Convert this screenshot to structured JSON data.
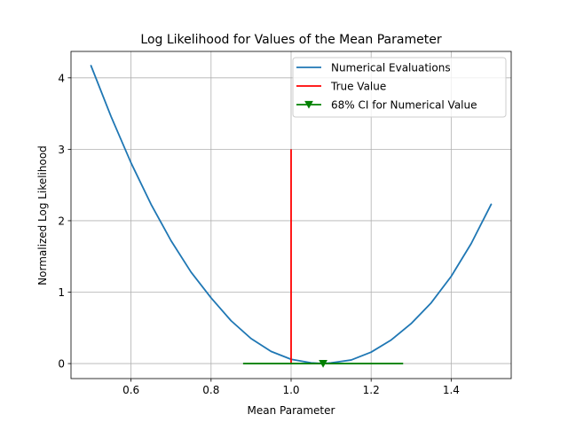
{
  "chart_data": {
    "type": "line",
    "title": "Log Likelihood for Values of the Mean Parameter",
    "xlabel": "Mean Parameter",
    "ylabel": "Normalized Log Likelihood",
    "xlim": [
      0.45,
      1.55
    ],
    "ylim": [
      -0.21,
      4.37
    ],
    "grid": true,
    "x_ticks": [
      {
        "value": 0.6,
        "label": "0.6"
      },
      {
        "value": 0.8,
        "label": "0.8"
      },
      {
        "value": 1.0,
        "label": "1.0"
      },
      {
        "value": 1.2,
        "label": "1.2"
      },
      {
        "value": 1.4,
        "label": "1.4"
      }
    ],
    "y_ticks": [
      {
        "value": 0,
        "label": "0"
      },
      {
        "value": 1,
        "label": "1"
      },
      {
        "value": 2,
        "label": "2"
      },
      {
        "value": 3,
        "label": "3"
      },
      {
        "value": 4,
        "label": "4"
      }
    ],
    "legend_position": "top-right",
    "series": [
      {
        "name": "Numerical Evaluations",
        "kind": "line",
        "color": "#1f77b4",
        "x": [
          0.5,
          0.55,
          0.6,
          0.65,
          0.7,
          0.75,
          0.8,
          0.85,
          0.9,
          0.95,
          1.0,
          1.05,
          1.08,
          1.1,
          1.15,
          1.2,
          1.25,
          1.3,
          1.35,
          1.4,
          1.45,
          1.5
        ],
        "y": [
          4.17,
          3.46,
          2.81,
          2.23,
          1.72,
          1.28,
          0.92,
          0.6,
          0.35,
          0.17,
          0.06,
          0.01,
          0.0,
          0.01,
          0.05,
          0.16,
          0.33,
          0.56,
          0.85,
          1.22,
          1.68,
          2.23
        ]
      },
      {
        "name": "True Value",
        "kind": "vline",
        "color": "#ff0000",
        "x": 1.0,
        "y": [
          0,
          3
        ]
      },
      {
        "name": "68% CI for Numerical Value",
        "kind": "errorbar",
        "color": "#008000",
        "marker": "triangle-down",
        "x": 1.08,
        "y": 0,
        "ci": [
          0.88,
          1.28
        ]
      }
    ]
  }
}
